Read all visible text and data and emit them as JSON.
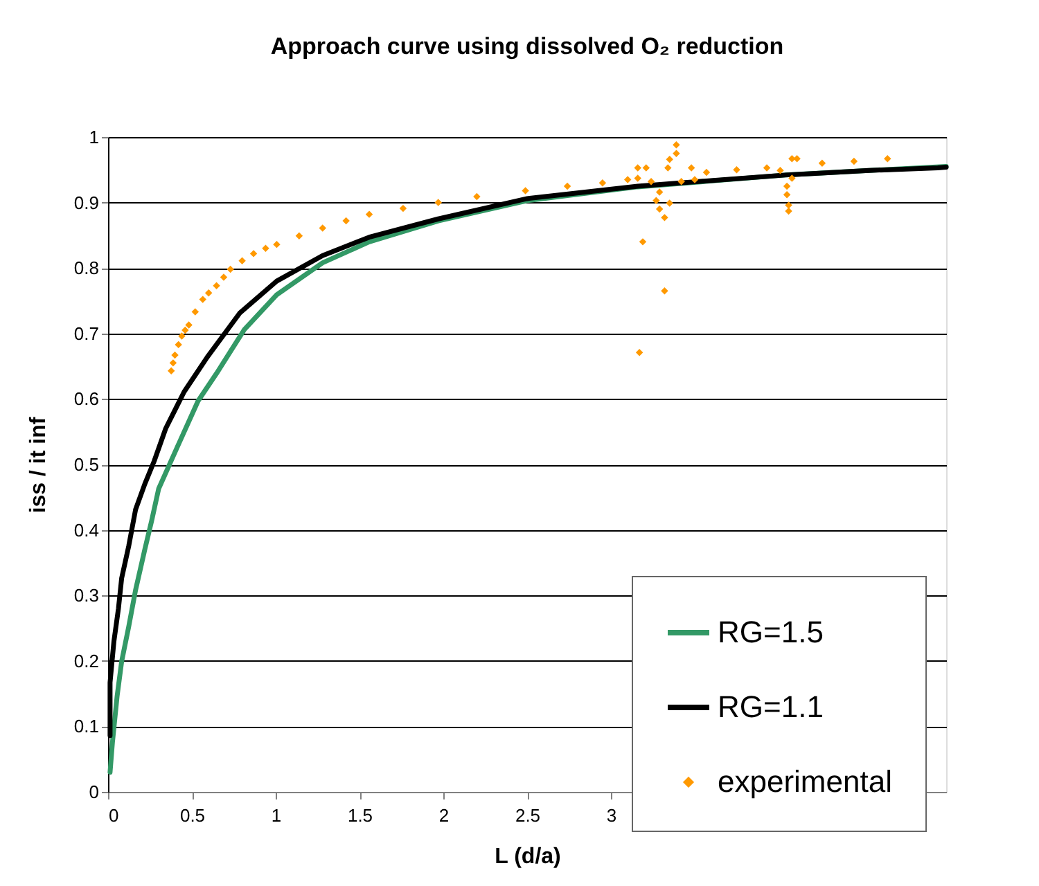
{
  "chart_data": {
    "type": "line",
    "title": "Approach curve using dissolved O₂ reduction",
    "xlabel": "L (d/a)",
    "ylabel": "iss / it inf",
    "xlim": [
      0,
      5
    ],
    "ylim": [
      0,
      1
    ],
    "xticks": [
      0,
      0.5,
      1,
      1.5,
      2,
      2.5,
      3
    ],
    "yticks": [
      0,
      0.1,
      0.2,
      0.3,
      0.4,
      0.5,
      0.6,
      0.7,
      0.8,
      0.9,
      1
    ],
    "grid": "y",
    "legend": "bottom right",
    "line_style": "solid",
    "marker": "none",
    "series": [
      {
        "name": "RG=1.5",
        "color": "#339966",
        "type": "line",
        "x": [
          0.012,
          0.026,
          0.054,
          0.081,
          0.123,
          0.164,
          0.22,
          0.26,
          0.302,
          0.412,
          0.537,
          0.647,
          0.813,
          1.006,
          1.28,
          1.558,
          1.97,
          2.5,
          3.16,
          4.04,
          4.54,
          5.0
        ],
        "values": [
          0.03,
          0.075,
          0.146,
          0.199,
          0.252,
          0.308,
          0.371,
          0.414,
          0.463,
          0.526,
          0.597,
          0.639,
          0.706,
          0.759,
          0.808,
          0.84,
          0.872,
          0.903,
          0.924,
          0.942,
          0.949,
          0.955
        ]
      },
      {
        "name": "RG=1.1",
        "color": "#000000",
        "type": "line",
        "x": [
          0.012,
          0.012,
          0.035,
          0.062,
          0.081,
          0.123,
          0.164,
          0.219,
          0.275,
          0.344,
          0.454,
          0.592,
          0.785,
          1.006,
          1.28,
          1.558,
          1.97,
          2.5,
          3.16,
          4.04,
          4.54,
          4.95,
          5.0
        ],
        "values": [
          0.086,
          0.167,
          0.23,
          0.28,
          0.326,
          0.375,
          0.431,
          0.47,
          0.505,
          0.555,
          0.611,
          0.664,
          0.731,
          0.78,
          0.819,
          0.847,
          0.875,
          0.906,
          0.925,
          0.942,
          0.949,
          0.953,
          0.954
        ]
      },
      {
        "name": "experimental",
        "color": "#ff9900",
        "type": "scatter",
        "marker": "diamond",
        "x": [
          0.377,
          0.388,
          0.399,
          0.42,
          0.44,
          0.46,
          0.482,
          0.52,
          0.565,
          0.6,
          0.647,
          0.69,
          0.73,
          0.8,
          0.868,
          0.94,
          1.006,
          1.14,
          1.28,
          1.42,
          1.558,
          1.76,
          1.97,
          2.2,
          2.49,
          2.74,
          2.95,
          3.1,
          3.16,
          3.16,
          3.17,
          3.19,
          3.21,
          3.24,
          3.27,
          3.29,
          3.29,
          3.32,
          3.32,
          3.34,
          3.35,
          3.35,
          3.39,
          3.39,
          3.42,
          3.48,
          3.5,
          3.57,
          3.75,
          3.93,
          4.01,
          4.05,
          4.05,
          4.06,
          4.06,
          4.08,
          4.08,
          4.11,
          4.26,
          4.45,
          4.65
        ],
        "values": [
          0.643,
          0.655,
          0.667,
          0.683,
          0.696,
          0.705,
          0.713,
          0.733,
          0.752,
          0.762,
          0.773,
          0.786,
          0.798,
          0.811,
          0.822,
          0.83,
          0.836,
          0.849,
          0.861,
          0.872,
          0.882,
          0.891,
          0.9,
          0.909,
          0.918,
          0.925,
          0.93,
          0.935,
          0.937,
          0.953,
          0.671,
          0.84,
          0.953,
          0.932,
          0.903,
          0.89,
          0.916,
          0.765,
          0.877,
          0.953,
          0.899,
          0.966,
          0.975,
          0.988,
          0.932,
          0.953,
          0.935,
          0.946,
          0.95,
          0.953,
          0.949,
          0.925,
          0.912,
          0.896,
          0.887,
          0.937,
          0.967,
          0.967,
          0.96,
          0.963,
          0.967
        ]
      }
    ]
  }
}
